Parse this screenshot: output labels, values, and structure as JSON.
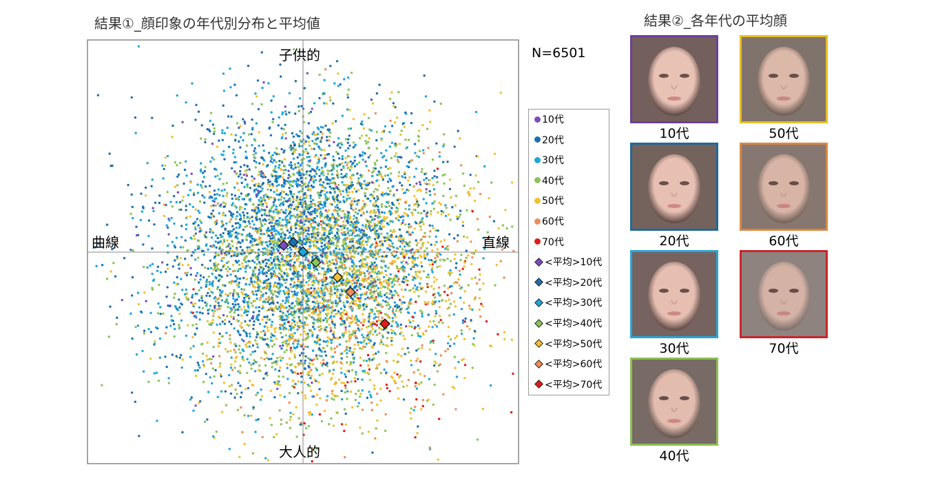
{
  "titles": {
    "result1": "結果①_顔印象の年代別分布と平均値",
    "result2": "結果②_各年代の平均顔"
  },
  "chart_data": {
    "type": "scatter",
    "title": "結果①_顔印象の年代別分布と平均値",
    "n_label": "N=6501",
    "axis_labels": {
      "top": "子供的",
      "bottom": "大人的",
      "left": "曲線",
      "right": "直線"
    },
    "xlim": [
      -1,
      1
    ],
    "ylim": [
      -1,
      1
    ],
    "grid": false,
    "legend_position": "right",
    "series": [
      {
        "name": "10代",
        "color": "#7e4bbf",
        "kind": "points",
        "count": 120
      },
      {
        "name": "20代",
        "color": "#1f6fb0",
        "kind": "points",
        "count": 1400
      },
      {
        "name": "30代",
        "color": "#1ea6dc",
        "kind": "points",
        "count": 1500
      },
      {
        "name": "40代",
        "color": "#8cc35a",
        "kind": "points",
        "count": 1300
      },
      {
        "name": "50代",
        "color": "#f2c12e",
        "kind": "points",
        "count": 1300
      },
      {
        "name": "60代",
        "color": "#ee8c5c",
        "kind": "points",
        "count": 280
      },
      {
        "name": "70代",
        "color": "#e21c1c",
        "kind": "points",
        "count": 100
      }
    ],
    "means": [
      {
        "name": "<平均>10代",
        "color": "#7e4bbf",
        "x": -0.09,
        "y": 0.03
      },
      {
        "name": "<平均>20代",
        "color": "#1f6fb0",
        "x": -0.045,
        "y": 0.045
      },
      {
        "name": "<平均>30代",
        "color": "#1ea6dc",
        "x": 0.0,
        "y": 0.0
      },
      {
        "name": "<平均>40代",
        "color": "#8cc35a",
        "x": 0.06,
        "y": -0.05
      },
      {
        "name": "<平均>50代",
        "color": "#f2c12e",
        "x": 0.16,
        "y": -0.12
      },
      {
        "name": "<平均>60代",
        "color": "#ee8c5c",
        "x": 0.22,
        "y": -0.19
      },
      {
        "name": "<平均>70代",
        "color": "#e21c1c",
        "x": 0.38,
        "y": -0.34
      }
    ]
  },
  "faces": [
    {
      "label": "10代",
      "border": "#6d3f98",
      "hair": "#5a4440",
      "skin": "#e9c2b6"
    },
    {
      "label": "20代",
      "border": "#1e6a9a",
      "hair": "#5c4641",
      "skin": "#e8c0b3"
    },
    {
      "label": "30代",
      "border": "#27a6d6",
      "hair": "#5e4843",
      "skin": "#e6bfb2"
    },
    {
      "label": "40代",
      "border": "#8dbf55",
      "hair": "#60504a",
      "skin": "#e2bcae"
    },
    {
      "label": "50代",
      "border": "#e8bd24",
      "hair": "#6a5a52",
      "skin": "#dcb8a9"
    },
    {
      "label": "60代",
      "border": "#d98841",
      "hair": "#716058",
      "skin": "#d8b4a6"
    },
    {
      "label": "70代",
      "border": "#c8252a",
      "hair": "#7a6d67",
      "skin": "#d4b2a6"
    }
  ]
}
